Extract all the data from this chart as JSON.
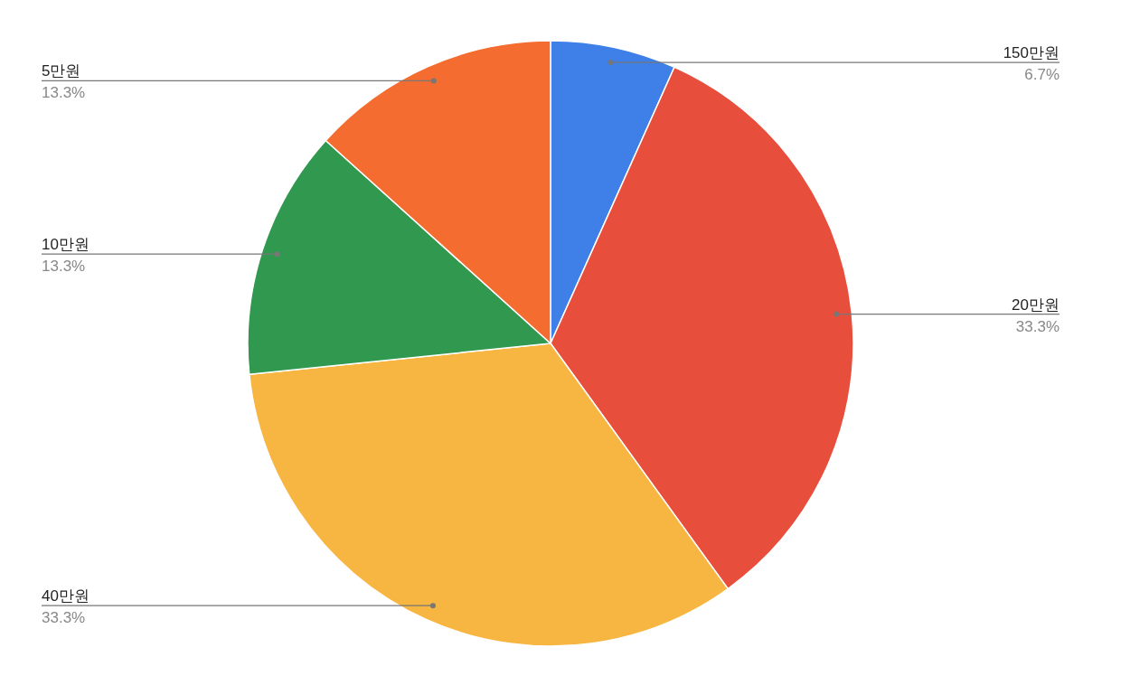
{
  "chart_data": {
    "type": "pie",
    "categories": [
      "150만원",
      "20만원",
      "40만원",
      "10만원",
      "5만원"
    ],
    "values": [
      6.7,
      33.3,
      33.3,
      13.3,
      13.3
    ],
    "value_labels": [
      "6.7%",
      "33.3%",
      "33.3%",
      "13.3%",
      "13.3%"
    ],
    "colors": [
      "#3e7fe8",
      "#e84e3c",
      "#f7b541",
      "#30994f",
      "#f46c2f"
    ]
  }
}
